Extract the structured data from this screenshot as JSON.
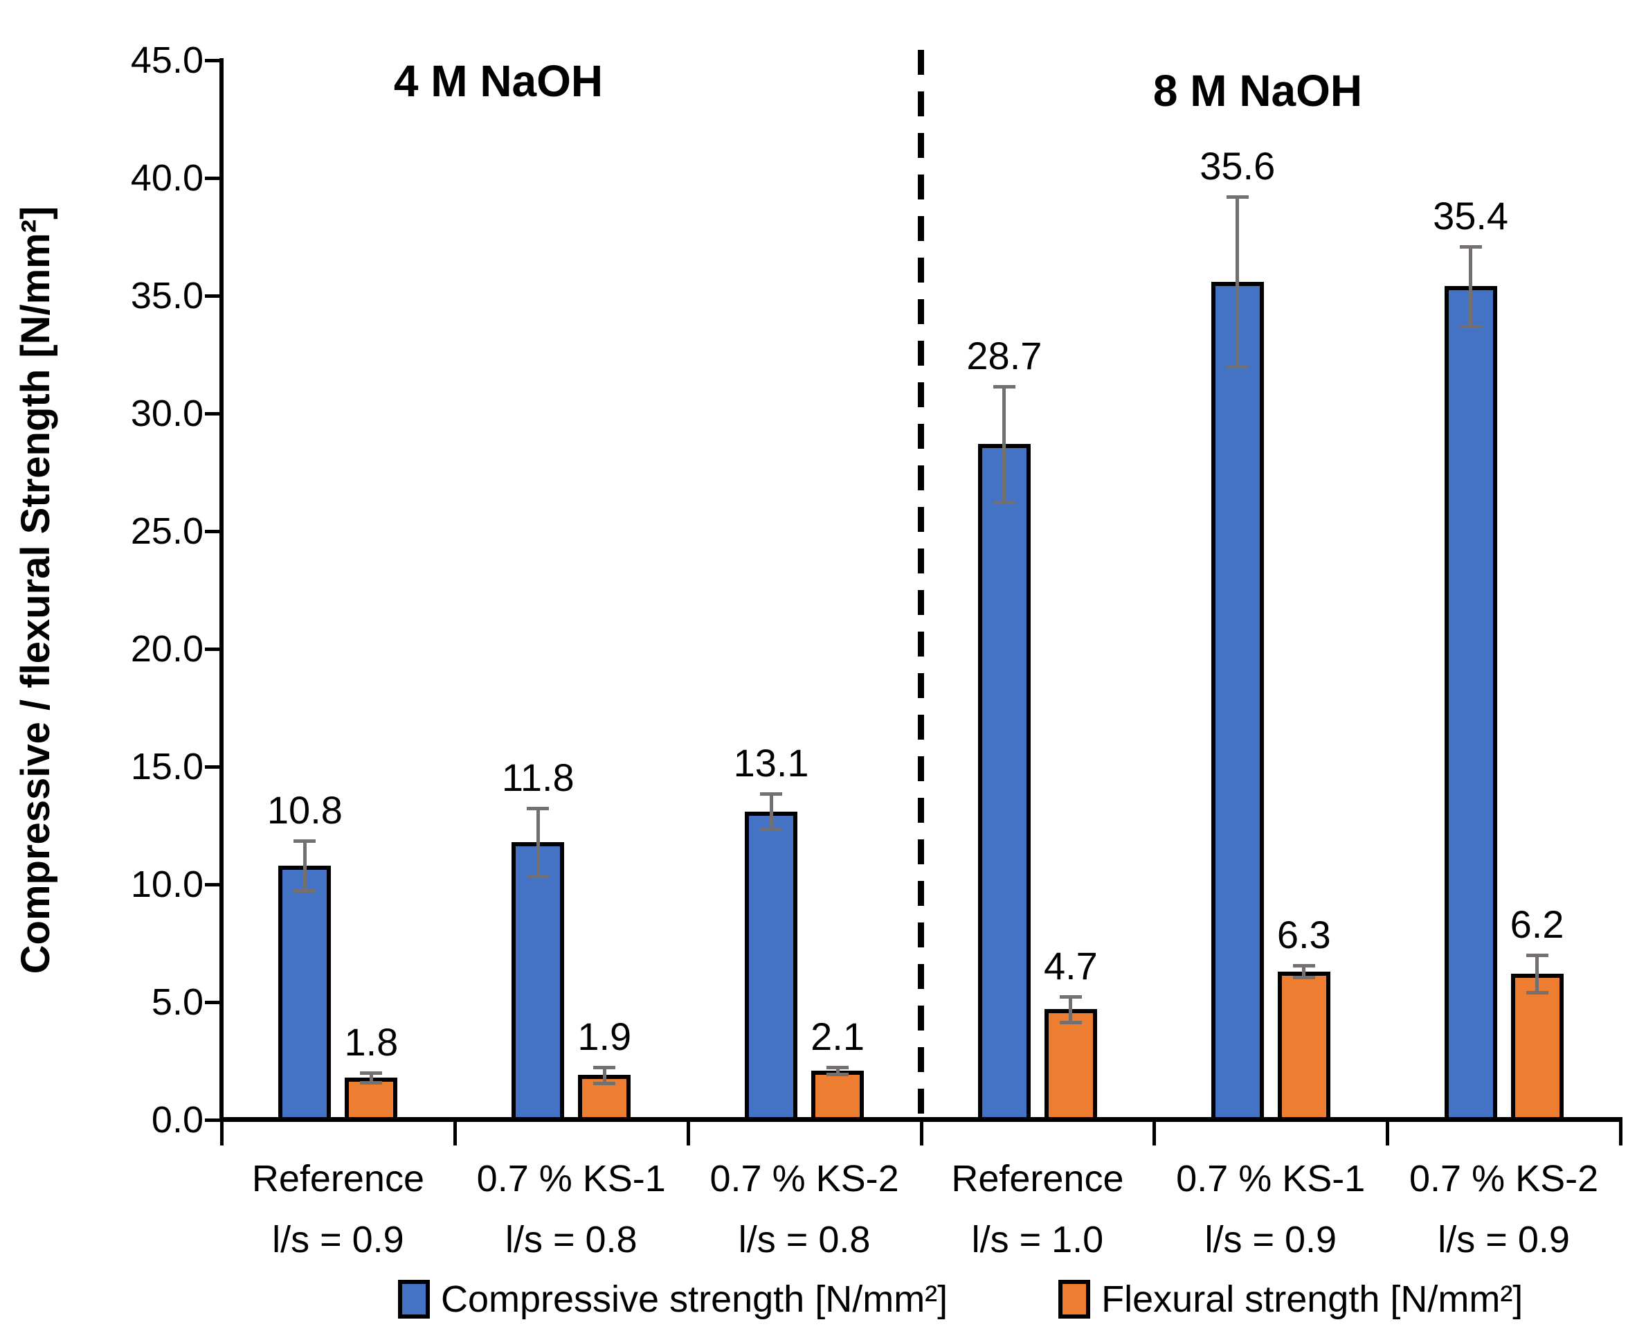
{
  "chart_data": {
    "type": "bar",
    "title": "",
    "xlabel": "",
    "ylabel": "Compressive / flexural Strength [N/mm²]",
    "ylim": [
      0,
      45
    ],
    "grid": false,
    "legend_position": "bottom",
    "y_tick_labels": [
      "45.0",
      "40.0",
      "35.0",
      "30.0",
      "25.0",
      "20.0",
      "15.0",
      "10.0",
      "5.0",
      "0.0"
    ],
    "categories": [
      {
        "line1": "Reference",
        "line2": "l/s = 0.9"
      },
      {
        "line1": "0.7 % KS-1",
        "line2": "l/s = 0.8"
      },
      {
        "line1": "0.7 % KS-2",
        "line2": "l/s = 0.8"
      },
      {
        "line1": "Reference",
        "line2": "l/s = 1.0"
      },
      {
        "line1": "0.7 % KS-1",
        "line2": "l/s = 0.9"
      },
      {
        "line1": "0.7 % KS-2",
        "line2": "l/s = 0.9"
      }
    ],
    "series": [
      {
        "name": "Compressive strength [N/mm²]",
        "color": "#4472C4",
        "values": [
          10.8,
          11.8,
          13.1,
          28.7,
          35.6,
          35.4
        ],
        "errors": [
          1.05,
          1.45,
          0.75,
          2.45,
          3.6,
          1.7
        ]
      },
      {
        "name": "Flexural strength [N/mm²]",
        "color": "#ED7D31",
        "values": [
          1.8,
          1.9,
          2.1,
          4.7,
          6.3,
          6.2
        ],
        "errors": [
          0.2,
          0.35,
          0.15,
          0.55,
          0.25,
          0.8
        ]
      }
    ],
    "annotations": [
      {
        "label": "4 M NaOH"
      },
      {
        "label": "8 M NaOH"
      }
    ],
    "divider_after_category": 3,
    "error_bar_color": "#757070",
    "axis_color": "#000000",
    "background_color": "#FFFFFF"
  }
}
